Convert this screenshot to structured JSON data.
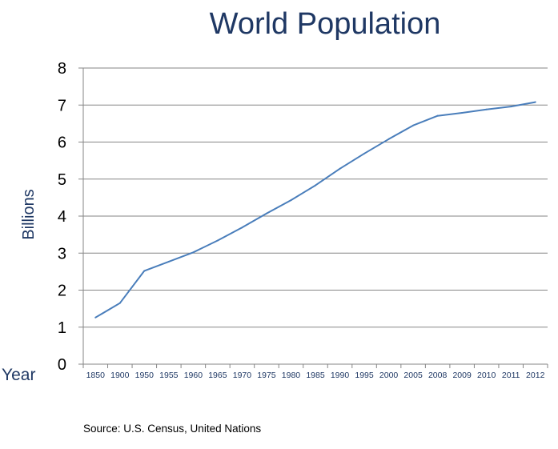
{
  "chart_data": {
    "type": "line",
    "title": "World Population",
    "xlabel": "Year",
    "ylabel": "Billions",
    "ylim": [
      0,
      8
    ],
    "yticks": [
      0,
      1,
      2,
      3,
      4,
      5,
      6,
      7,
      8
    ],
    "grid": true,
    "categories": [
      "1850",
      "1900",
      "1950",
      "1955",
      "1960",
      "1965",
      "1970",
      "1975",
      "1980",
      "1985",
      "1990",
      "1995",
      "2000",
      "2005",
      "2008",
      "2009",
      "2010",
      "2011",
      "2012"
    ],
    "series": [
      {
        "values": [
          1.26,
          1.65,
          2.52,
          2.77,
          3.02,
          3.34,
          3.69,
          4.07,
          4.43,
          4.83,
          5.28,
          5.69,
          6.08,
          6.45,
          6.71,
          6.79,
          6.88,
          6.96,
          7.08
        ]
      }
    ],
    "source": "Source: U.S. Census, United Nations",
    "colors": {
      "line": "#4a7ebb",
      "grid": "#868686",
      "axis": "#868686",
      "title": "#1f3864"
    }
  }
}
